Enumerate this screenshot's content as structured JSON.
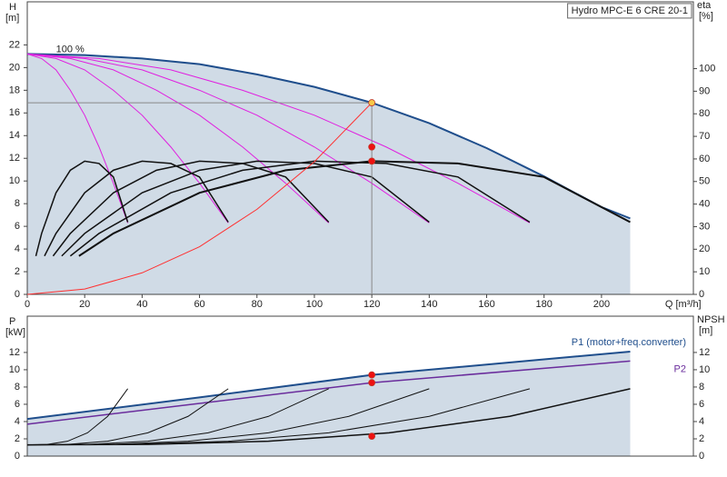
{
  "chart_data": [
    {
      "type": "line",
      "title": "Hydro MPC-E 6 CRE 20-1",
      "y_label": "H",
      "y_unit": "[m]",
      "y2_label": "eta",
      "y2_unit": "[%]",
      "x_label": "Q [m³/h]",
      "annotation": {
        "text": "100 %",
        "x": 10,
        "y": 21.6
      },
      "xlim": [
        0,
        232
      ],
      "xticks": [
        0,
        20,
        40,
        60,
        80,
        100,
        120,
        140,
        160,
        180,
        200
      ],
      "ylim": [
        0,
        25.8
      ],
      "yticks": [
        0,
        2,
        4,
        6,
        8,
        10,
        12,
        14,
        16,
        18,
        20,
        22
      ],
      "y2lim": [
        0,
        129.6
      ],
      "y2ticks": [
        0,
        10,
        20,
        30,
        40,
        50,
        60,
        70,
        80,
        90,
        100
      ],
      "series": [
        {
          "color": "#1f4e8c",
          "fill": "#d0dbe6",
          "linewidth": 2,
          "x": [
            0,
            20,
            40,
            60,
            80,
            100,
            120,
            140,
            160,
            180,
            200,
            210
          ],
          "values": [
            21.2,
            21.1,
            20.8,
            20.3,
            19.4,
            18.3,
            16.9,
            15.1,
            12.9,
            10.4,
            7.7,
            6.7
          ]
        },
        {
          "color": "#e020e0",
          "linewidth": 1,
          "x": [
            0,
            5,
            10,
            15,
            20,
            25,
            30,
            35
          ],
          "values": [
            21.2,
            20.8,
            19.8,
            18,
            15.8,
            13,
            9.8,
            6.3
          ]
        },
        {
          "color": "#e020e0",
          "linewidth": 1,
          "x": [
            0,
            10,
            20,
            30,
            40,
            50,
            60,
            70
          ],
          "values": [
            21.2,
            20.8,
            19.8,
            18,
            15.8,
            13,
            9.8,
            6.3
          ]
        },
        {
          "color": "#e020e0",
          "linewidth": 1,
          "x": [
            0,
            15,
            30,
            45,
            60,
            75,
            90,
            105
          ],
          "values": [
            21.2,
            20.8,
            19.8,
            18,
            15.8,
            13,
            9.8,
            6.3
          ]
        },
        {
          "color": "#e020e0",
          "linewidth": 1,
          "x": [
            0,
            20,
            40,
            60,
            80,
            100,
            120,
            140
          ],
          "values": [
            21.2,
            20.8,
            19.8,
            18,
            15.8,
            13,
            9.8,
            6.3
          ]
        },
        {
          "color": "#e020e0",
          "linewidth": 1,
          "x": [
            0,
            25,
            50,
            75,
            100,
            125,
            150,
            175
          ],
          "values": [
            21.2,
            20.8,
            19.8,
            18,
            15.8,
            13,
            9.8,
            6.3
          ]
        },
        {
          "color": "#111111",
          "linewidth": 1.5,
          "axis": "y2",
          "x": [
            3,
            5,
            10,
            15,
            20,
            25,
            30,
            35
          ],
          "values": [
            17,
            27,
            45,
            55,
            59,
            58,
            52,
            32
          ]
        },
        {
          "color": "#111111",
          "linewidth": 1.5,
          "axis": "y2",
          "x": [
            6,
            10,
            20,
            30,
            40,
            50,
            60,
            70
          ],
          "values": [
            17,
            27,
            45,
            55,
            59,
            58,
            52,
            32
          ]
        },
        {
          "color": "#111111",
          "linewidth": 1.5,
          "axis": "y2",
          "x": [
            9,
            15,
            30,
            45,
            60,
            75,
            90,
            105
          ],
          "values": [
            17,
            27,
            45,
            55,
            59,
            58,
            52,
            32
          ]
        },
        {
          "color": "#111111",
          "linewidth": 1.5,
          "axis": "y2",
          "x": [
            12,
            20,
            40,
            60,
            80,
            100,
            120,
            140
          ],
          "values": [
            17,
            27,
            45,
            55,
            59,
            58,
            52,
            32
          ]
        },
        {
          "color": "#111111",
          "linewidth": 1.5,
          "axis": "y2",
          "x": [
            15,
            25,
            50,
            75,
            100,
            125,
            150,
            175
          ],
          "values": [
            17,
            27,
            45,
            55,
            59,
            58,
            52,
            32
          ]
        },
        {
          "color": "#111111",
          "linewidth": 2,
          "axis": "y2",
          "x": [
            18,
            30,
            60,
            90,
            120,
            150,
            180,
            210
          ],
          "values": [
            17,
            27,
            45,
            55,
            59,
            58,
            52,
            32
          ]
        },
        {
          "color": "#ff3030",
          "linewidth": 1,
          "x": [
            0,
            20,
            40,
            60,
            80,
            100,
            120
          ],
          "values": [
            0,
            0.47,
            1.9,
            4.2,
            7.5,
            11.7,
            16.9
          ]
        }
      ],
      "crosshair": true,
      "points": [
        {
          "x": 120,
          "y": 16.9,
          "color": "#f7c948"
        },
        {
          "x": 120,
          "y": 13.0,
          "color": "#ee1111"
        },
        {
          "x": 120,
          "y": 59,
          "axis": "y2",
          "color": "#ee1111"
        }
      ]
    },
    {
      "type": "line",
      "y_label": "P",
      "y_unit": "[kW]",
      "y2_label": "NPSH",
      "y2_unit": "[m]",
      "xlim": [
        0,
        232
      ],
      "ylim": [
        0,
        16.2
      ],
      "yticks": [
        0,
        2,
        4,
        6,
        8,
        10,
        12
      ],
      "y2lim": [
        0,
        16.2
      ],
      "y2ticks": [
        0,
        2,
        4,
        6,
        8,
        10,
        12
      ],
      "series": [
        {
          "name": "P1 (motor+freq.converter)",
          "label_pos": "above",
          "color": "#1f4e8c",
          "fill": "#d0dbe6",
          "linewidth": 2,
          "x": [
            0,
            60,
            120,
            210
          ],
          "values": [
            4.3,
            6.8,
            9.4,
            12.1
          ]
        },
        {
          "name": "P2",
          "label_pos": "below",
          "color": "#6a2c9c",
          "linewidth": 1.5,
          "x": [
            0,
            60,
            120,
            210
          ],
          "values": [
            3.7,
            6.1,
            8.5,
            11.0
          ]
        },
        {
          "color": "#111111",
          "linewidth": 1,
          "axis": "y2",
          "x": [
            0,
            7,
            14,
            21,
            28,
            35
          ],
          "values": [
            1.3,
            1.35,
            1.72,
            2.7,
            4.6,
            7.8
          ]
        },
        {
          "color": "#111111",
          "linewidth": 1,
          "axis": "y2",
          "x": [
            0,
            14,
            28,
            42,
            56,
            70
          ],
          "values": [
            1.3,
            1.35,
            1.72,
            2.7,
            4.6,
            7.8
          ]
        },
        {
          "color": "#111111",
          "linewidth": 1,
          "axis": "y2",
          "x": [
            0,
            21,
            42,
            63,
            84,
            105
          ],
          "values": [
            1.3,
            1.35,
            1.72,
            2.7,
            4.6,
            7.8
          ]
        },
        {
          "color": "#111111",
          "linewidth": 1,
          "axis": "y2",
          "x": [
            0,
            28,
            56,
            84,
            112,
            140
          ],
          "values": [
            1.3,
            1.35,
            1.72,
            2.7,
            4.6,
            7.8
          ]
        },
        {
          "color": "#111111",
          "linewidth": 1,
          "axis": "y2",
          "x": [
            0,
            35,
            70,
            105,
            140,
            175
          ],
          "values": [
            1.3,
            1.35,
            1.72,
            2.7,
            4.6,
            7.8
          ]
        },
        {
          "color": "#111111",
          "linewidth": 1.5,
          "axis": "y2",
          "x": [
            0,
            42,
            84,
            126,
            168,
            210
          ],
          "values": [
            1.3,
            1.35,
            1.72,
            2.7,
            4.6,
            7.8
          ]
        }
      ],
      "points": [
        {
          "x": 120,
          "y": 9.4,
          "color": "#ee1111"
        },
        {
          "x": 120,
          "y": 8.5,
          "color": "#ee1111"
        },
        {
          "x": 120,
          "y": 2.3,
          "axis": "y2",
          "color": "#ee1111"
        }
      ]
    }
  ]
}
